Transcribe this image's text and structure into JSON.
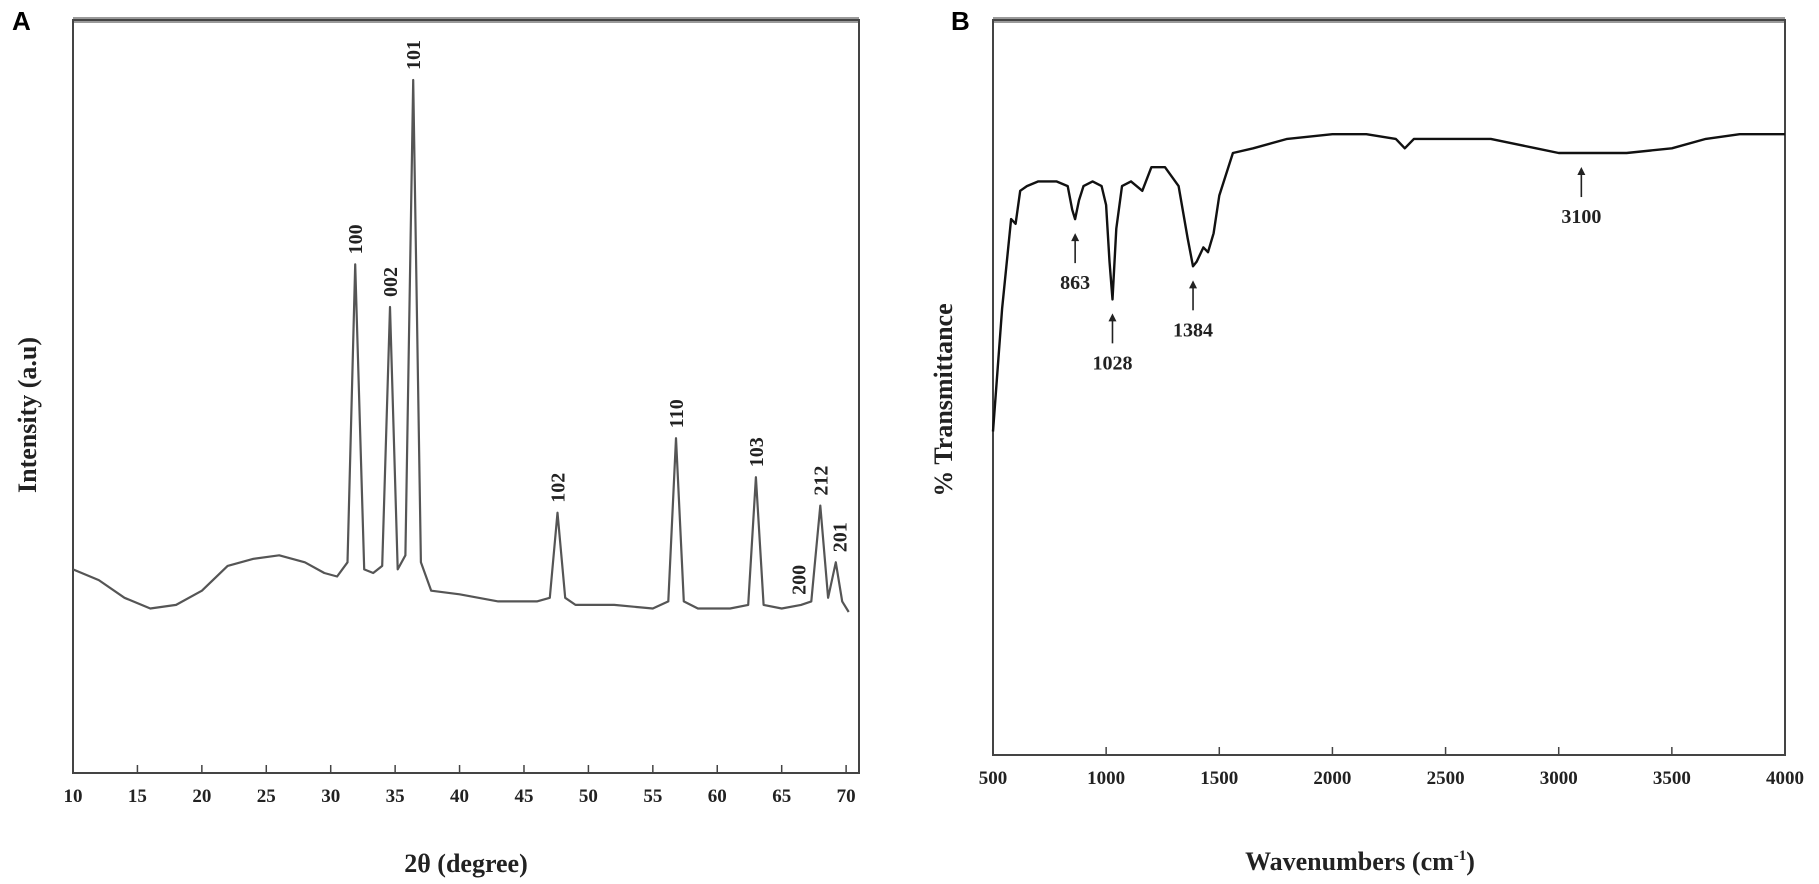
{
  "panels": {
    "a_label": "A",
    "b_label": "B"
  },
  "chart_data": [
    {
      "type": "line",
      "panel": "A",
      "xlabel": "2θ (degree)",
      "ylabel": "Intensity (a.u)",
      "xlim": [
        10,
        71
      ],
      "xticks": [
        10,
        15,
        20,
        25,
        30,
        35,
        40,
        45,
        50,
        55,
        60,
        65,
        70
      ],
      "yticks_shown": false,
      "grid": false,
      "series": [
        {
          "x": [
            10,
            12,
            14,
            16,
            18,
            20,
            22,
            24,
            26,
            28,
            29.5,
            30.5,
            31.3,
            31.9,
            32.6,
            33.3,
            34,
            34.6,
            35.2,
            35.8,
            36.4,
            37.0,
            37.8,
            40,
            43,
            46,
            47,
            47.6,
            48.2,
            49,
            52,
            55,
            56.2,
            56.8,
            57.4,
            58.5,
            61,
            62.4,
            63,
            63.6,
            65,
            66.5,
            67.3,
            68,
            68.6,
            69.2,
            69.7,
            70.2
          ],
          "y": [
            12,
            9,
            4,
            1,
            2,
            6,
            13,
            15,
            16,
            14,
            11,
            10,
            14,
            98,
            12,
            11,
            13,
            86,
            12,
            16,
            150,
            14,
            6,
            5,
            3,
            3,
            4,
            28,
            4,
            2,
            2,
            1,
            3,
            49,
            3,
            1,
            1,
            2,
            38,
            2,
            1,
            2,
            3,
            30,
            4,
            14,
            3,
            0
          ]
        }
      ],
      "annotations": [
        {
          "text": "100",
          "x": 31.9
        },
        {
          "text": "002",
          "x": 34.6
        },
        {
          "text": "101",
          "x": 36.4
        },
        {
          "text": "102",
          "x": 47.6
        },
        {
          "text": "110",
          "x": 56.8
        },
        {
          "text": "103",
          "x": 63.0
        },
        {
          "text": "200",
          "x": 66.3
        },
        {
          "text": "212",
          "x": 68.0
        },
        {
          "text": "201",
          "x": 69.5
        }
      ]
    },
    {
      "type": "line",
      "panel": "B",
      "xlabel": "Wavenumbers (cm",
      "xlabel_sup": "-1",
      "xlabel_close": ")",
      "ylabel": "% Transmittance",
      "xlim": [
        500,
        4000
      ],
      "xticks": [
        500,
        1000,
        1500,
        2000,
        2500,
        3000,
        3500,
        4000
      ],
      "yticks_shown": false,
      "grid": false,
      "series": [
        {
          "x": [
            500,
            540,
            580,
            600,
            620,
            650,
            700,
            780,
            830,
            850,
            863,
            880,
            900,
            940,
            980,
            1000,
            1015,
            1028,
            1045,
            1070,
            1110,
            1160,
            1200,
            1260,
            1320,
            1360,
            1384,
            1400,
            1430,
            1450,
            1475,
            1500,
            1560,
            1650,
            1800,
            2000,
            2150,
            2280,
            2320,
            2360,
            2500,
            2700,
            2900,
            3000,
            3100,
            3300,
            3500,
            3650,
            3800,
            4000
          ],
          "y": [
            34,
            60,
            79,
            78,
            85,
            86,
            87,
            87,
            86,
            81,
            79,
            83,
            86,
            87,
            86,
            82,
            70,
            62,
            77,
            86,
            87,
            85,
            90,
            90,
            86,
            75,
            69,
            70,
            73,
            72,
            76,
            84,
            93,
            94,
            96,
            97,
            97,
            96,
            94,
            96,
            96,
            96,
            94,
            93,
            93,
            93,
            94,
            96,
            97,
            97
          ]
        }
      ],
      "annotations": [
        {
          "text": "863",
          "x": 863
        },
        {
          "text": "1028",
          "x": 1028
        },
        {
          "text": "1384",
          "x": 1384
        },
        {
          "text": "3100",
          "x": 3100
        }
      ]
    }
  ]
}
